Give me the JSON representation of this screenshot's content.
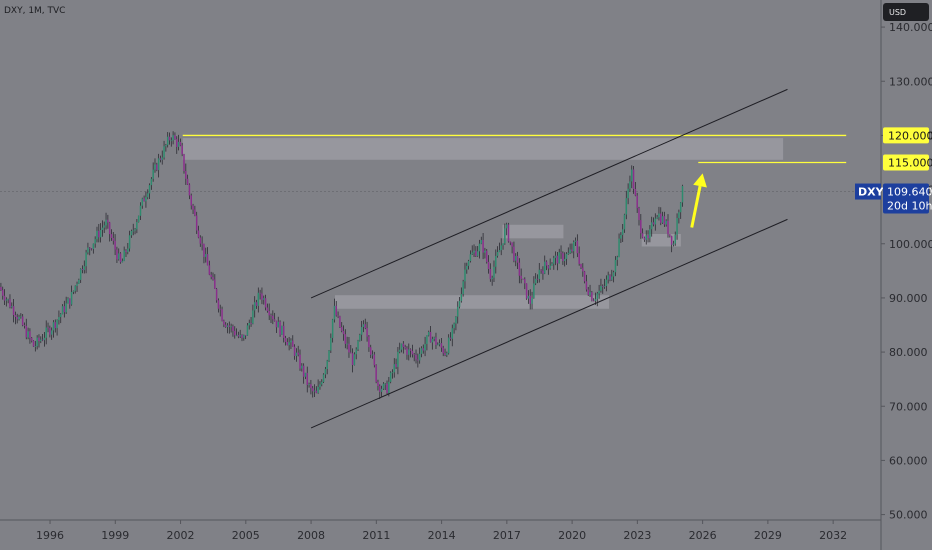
{
  "header": {
    "symbol_line": "DXY, 1M, TVC"
  },
  "currency_button": "USD",
  "price_badge": {
    "symbol": "DXY",
    "value": "109.640",
    "countdown": "20d 10h"
  },
  "level_badges": [
    {
      "value": 120,
      "label": "120.000"
    },
    {
      "value": 115,
      "label": "115.000"
    }
  ],
  "colors": {
    "background": "#808187",
    "bull": "#2e8b6e",
    "bear": "#8a2f8c",
    "wick": "#2c2c33",
    "level": "#ffff3c",
    "arrow": "#ffff1e",
    "channel": "#1e1e24",
    "zone": "#c8c8d0",
    "badge_blue": "#1d3f9e"
  },
  "chart_data": {
    "type": "candlestick",
    "title": "",
    "xlabel": "",
    "ylabel": "",
    "ylim": [
      49,
      145
    ],
    "xlim": [
      1993.7,
      2034.2
    ],
    "y_ticks": [
      "50.000",
      "60.000",
      "70.000",
      "80.000",
      "90.000",
      "100.000",
      "110.000",
      "120.000",
      "130.000",
      "140.000"
    ],
    "y_tick_values": [
      50,
      60,
      70,
      80,
      90,
      100,
      110,
      120,
      130,
      140
    ],
    "x_ticks": [
      "1996",
      "1999",
      "2002",
      "2005",
      "2008",
      "2011",
      "2014",
      "2017",
      "2020",
      "2023",
      "2026",
      "2029",
      "2032"
    ],
    "x_tick_values": [
      1996,
      1999,
      2002,
      2005,
      2008,
      2011,
      2014,
      2017,
      2020,
      2023,
      2026,
      2029,
      2032
    ],
    "price_path": [
      [
        1993.7,
        92
      ],
      [
        1994.5,
        87
      ],
      [
        1995.3,
        81
      ],
      [
        1996.2,
        85
      ],
      [
        1997,
        90
      ],
      [
        1997.8,
        99
      ],
      [
        1998.6,
        104
      ],
      [
        1999.3,
        96
      ],
      [
        1999.9,
        103
      ],
      [
        2000.5,
        110
      ],
      [
        2001.0,
        115
      ],
      [
        2001.6,
        120
      ],
      [
        2002.0,
        118
      ],
      [
        2002.5,
        108
      ],
      [
        2003.2,
        97
      ],
      [
        2004.0,
        86
      ],
      [
        2004.9,
        82
      ],
      [
        2005.7,
        91
      ],
      [
        2006.5,
        85
      ],
      [
        2007.3,
        80
      ],
      [
        2008.0,
        73
      ],
      [
        2008.3,
        72
      ],
      [
        2008.8,
        79
      ],
      [
        2009.1,
        88
      ],
      [
        2009.5,
        83
      ],
      [
        2010.0,
        78
      ],
      [
        2010.5,
        86
      ],
      [
        2011.1,
        74
      ],
      [
        2011.5,
        73
      ],
      [
        2012.2,
        81
      ],
      [
        2012.9,
        79
      ],
      [
        2013.5,
        83
      ],
      [
        2014.2,
        80
      ],
      [
        2014.6,
        84
      ],
      [
        2015.2,
        97
      ],
      [
        2015.9,
        100
      ],
      [
        2016.3,
        94
      ],
      [
        2016.8,
        100
      ],
      [
        2017.0,
        103
      ],
      [
        2017.5,
        96
      ],
      [
        2018.1,
        89
      ],
      [
        2018.5,
        95
      ],
      [
        2019.2,
        97
      ],
      [
        2019.9,
        98
      ],
      [
        2020.2,
        100
      ],
      [
        2020.6,
        93
      ],
      [
        2021.0,
        90
      ],
      [
        2021.5,
        92
      ],
      [
        2022.0,
        96
      ],
      [
        2022.4,
        104
      ],
      [
        2022.75,
        114
      ],
      [
        2023.1,
        104
      ],
      [
        2023.5,
        100
      ],
      [
        2023.9,
        106
      ],
      [
        2024.3,
        104
      ],
      [
        2024.7,
        100
      ],
      [
        2025.0,
        108
      ],
      [
        2025.1,
        109.64
      ]
    ],
    "horizontal_levels": [
      {
        "value": 120,
        "x_start": 2002.1,
        "x_end": 2032.6
      },
      {
        "value": 115,
        "x_start": 2025.8,
        "x_end": 2032.6
      }
    ],
    "channel": {
      "upper": [
        [
          2008.0,
          90
        ],
        [
          2029.9,
          128.5
        ]
      ],
      "lower": [
        [
          2008.0,
          66
        ],
        [
          2029.9,
          104.5
        ]
      ]
    },
    "zones": [
      {
        "x1": 2002.1,
        "x2": 2029.7,
        "y_low": 115.5,
        "y_high": 119.5
      },
      {
        "x1": 2009.1,
        "x2": 2021.7,
        "y_low": 88,
        "y_high": 90.5
      },
      {
        "x1": 2016.8,
        "x2": 2019.6,
        "y_low": 101,
        "y_high": 103.5
      },
      {
        "x1": 2023.2,
        "x2": 2025.0,
        "y_low": 99.5,
        "y_high": 101.8
      }
    ],
    "arrow": {
      "from": [
        2025.5,
        103
      ],
      "to": [
        2026.0,
        113
      ]
    },
    "last_price": 109.64
  }
}
